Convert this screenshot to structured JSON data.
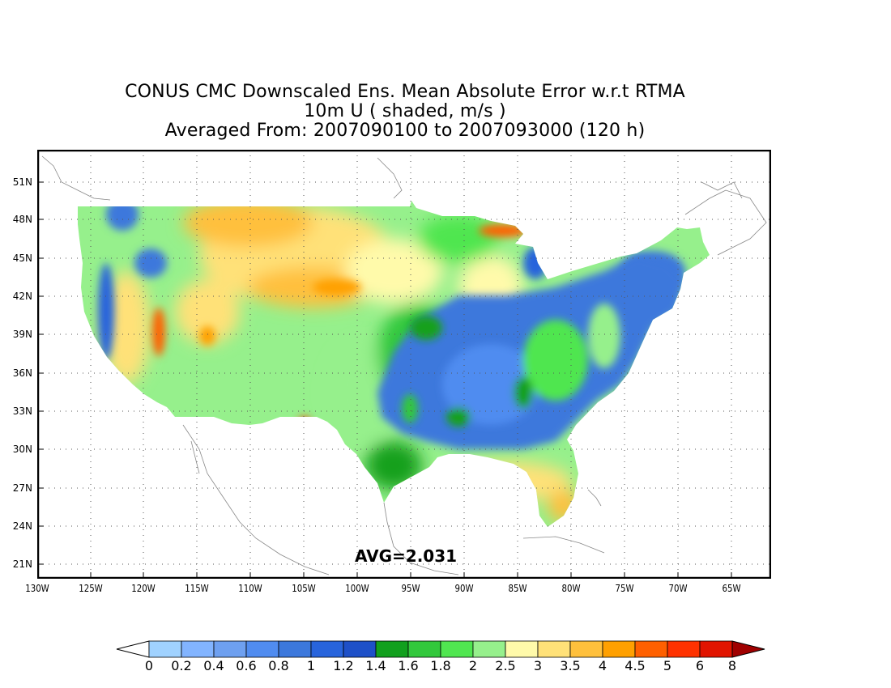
{
  "title": {
    "line1": "CONUS CMC Downscaled Ens. Mean Absolute Error w.r.t RTMA",
    "line2": "10m U ( shaded, m/s )",
    "line3": "Averaged From: 2007090100 to 2007093000 (120 h)"
  },
  "stat": {
    "label": "AVG=2.031"
  },
  "map": {
    "lat_labels": [
      "51N",
      "48N",
      "45N",
      "42N",
      "39N",
      "36N",
      "33N",
      "30N",
      "27N",
      "24N",
      "21N"
    ],
    "lon_labels": [
      "130W",
      "125W",
      "120W",
      "115W",
      "110W",
      "105W",
      "100W",
      "95W",
      "90W",
      "85W",
      "80W",
      "75W",
      "70W",
      "65W"
    ]
  },
  "colorbar": {
    "labels": [
      "0",
      "0.2",
      "0.4",
      "0.6",
      "0.8",
      "1",
      "1.2",
      "1.4",
      "1.6",
      "1.8",
      "2",
      "2.5",
      "3",
      "3.5",
      "4",
      "4.5",
      "5",
      "6",
      "8"
    ],
    "under_color": "#ffffff",
    "over_color": "#a00000",
    "colors": [
      "#a0d2ff",
      "#82b4ff",
      "#6ea0f0",
      "#508cf0",
      "#3c78dc",
      "#2864dc",
      "#1e50c8",
      "#12a01e",
      "#32c83c",
      "#50e650",
      "#96f08c",
      "#fffaaa",
      "#ffe178",
      "#ffc03c",
      "#ffa000",
      "#ff6000",
      "#ff3200",
      "#e11400",
      "#a00000"
    ]
  }
}
